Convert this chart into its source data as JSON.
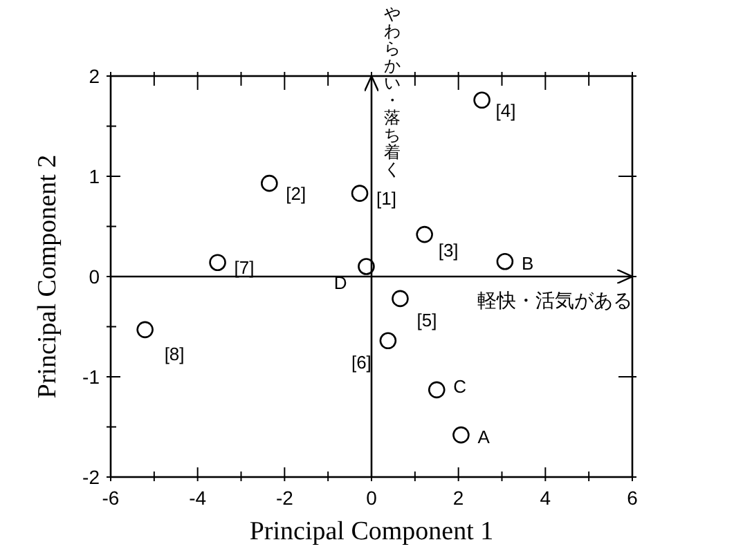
{
  "chart_data": {
    "type": "scatter",
    "xlabel": "Principal Component  1",
    "ylabel": "Principal Component  2",
    "x": [
      -0.27,
      -2.35,
      1.22,
      2.54,
      0.66,
      0.38,
      -3.54,
      -5.21,
      2.06,
      3.07,
      1.5,
      -0.12
    ],
    "values": [
      0.83,
      0.93,
      0.42,
      1.76,
      -0.22,
      -0.64,
      0.14,
      -0.53,
      -1.58,
      0.15,
      -1.13,
      0.1
    ],
    "color": "#000000",
    "marker": "circle",
    "annotations": [
      {
        "text": "[1]",
        "x": -0.27,
        "y": 0.83
      },
      {
        "text": "[2]",
        "x": -2.35,
        "y": 0.93
      },
      {
        "text": "[3]",
        "x": 1.22,
        "y": 0.42
      },
      {
        "text": "[4]",
        "x": 2.54,
        "y": 1.76
      },
      {
        "text": "[5]",
        "x": 0.66,
        "y": -0.22
      },
      {
        "text": "[6]",
        "x": 0.38,
        "y": -0.64
      },
      {
        "text": "[7]",
        "x": -3.54,
        "y": 0.14
      },
      {
        "text": "[8]",
        "x": -5.21,
        "y": -0.53
      },
      {
        "text": "A",
        "x": 2.06,
        "y": -1.58
      },
      {
        "text": "B",
        "x": 3.07,
        "y": 0.15
      },
      {
        "text": "C",
        "x": 1.5,
        "y": -1.13
      },
      {
        "text": "D",
        "x": -0.12,
        "y": 0.1
      }
    ],
    "xlim": [
      -6,
      6
    ],
    "xticks": [
      -6,
      {
        "value": -5,
        "label": null
      },
      -4,
      {
        "value": -3,
        "label": null
      },
      -2,
      {
        "value": -1,
        "label": null
      },
      0,
      {
        "value": 1,
        "label": null
      },
      2,
      {
        "value": 3,
        "label": null
      },
      4,
      {
        "value": 5,
        "label": null
      },
      6
    ],
    "ylim": [
      -2,
      2
    ],
    "yticks": [
      -2,
      {
        "value": -1.5,
        "label": null
      },
      -1,
      {
        "value": -0.5,
        "label": null
      },
      0,
      {
        "value": 0.5,
        "label": null
      },
      1,
      {
        "value": 1.5,
        "label": null
      },
      2
    ],
    "ref_lines": [
      {
        "axis": "y",
        "value": 0,
        "label": "軽快・活気がある"
      },
      {
        "axis": "x",
        "value": 0,
        "label": "やわらかい・落ち着く"
      }
    ],
    "grid": false
  }
}
